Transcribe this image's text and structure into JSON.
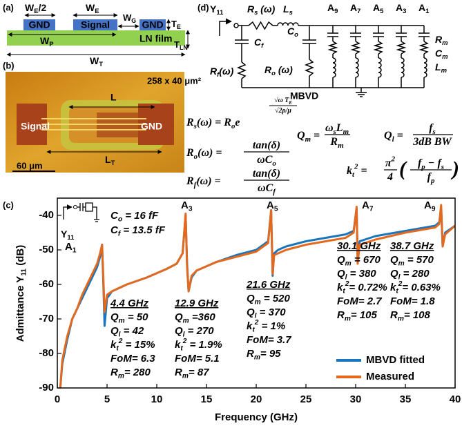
{
  "panel_a": {
    "label": "(a)",
    "we_half": [
      {
        "t": "W"
      },
      {
        "sub": "E"
      },
      {
        "t": "/2"
      }
    ],
    "we": [
      {
        "t": "W"
      },
      {
        "sub": "E"
      }
    ],
    "wg": [
      {
        "t": "W"
      },
      {
        "sub": "G"
      }
    ],
    "te": [
      {
        "t": "T"
      },
      {
        "sub": "E"
      }
    ],
    "wp": [
      {
        "t": "W"
      },
      {
        "sub": "P"
      }
    ],
    "tln": [
      {
        "t": "T"
      },
      {
        "sub": "LN"
      }
    ],
    "wt": [
      {
        "t": "W"
      },
      {
        "sub": "T"
      }
    ],
    "gnd_left": "GND",
    "signal": "Signal",
    "gnd_right": "GND",
    "film": "LN film"
  },
  "panel_b": {
    "label": "(b)",
    "size": "258 x 40 μm²",
    "length": "L",
    "total_length": [
      {
        "t": "L"
      },
      {
        "sub": "T"
      }
    ],
    "signal": "Signal",
    "gnd": "GND",
    "scale": "60 μm"
  },
  "panel_d": {
    "label": "(d)",
    "port": [
      {
        "t": "Y"
      },
      {
        "sub": "11"
      }
    ],
    "rs": [
      {
        "t": "R"
      },
      {
        "sub": "s"
      },
      {
        "t": " (ω)"
      }
    ],
    "ls": [
      {
        "t": "L"
      },
      {
        "sub": "s"
      }
    ],
    "modes": [
      [
        {
          "t": "A"
        },
        {
          "sub": "9"
        }
      ],
      [
        {
          "t": "A"
        },
        {
          "sub": "7"
        }
      ],
      [
        {
          "t": "A"
        },
        {
          "sub": "5"
        }
      ],
      [
        {
          "t": "A"
        },
        {
          "sub": "3"
        }
      ],
      [
        {
          "t": "A"
        },
        {
          "sub": "1"
        }
      ]
    ],
    "rm": [
      {
        "t": "R"
      },
      {
        "sub": "m"
      }
    ],
    "cm": [
      {
        "t": "C"
      },
      {
        "sub": "m"
      }
    ],
    "lm": [
      {
        "t": "L"
      },
      {
        "sub": "m"
      }
    ],
    "cf": [
      {
        "t": "C"
      },
      {
        "sub": "f"
      }
    ],
    "co": [
      {
        "t": "C"
      },
      {
        "sub": "o"
      }
    ],
    "ro": [
      {
        "t": "R"
      },
      {
        "sub": "o"
      },
      {
        "t": " (ω)"
      }
    ],
    "rf": [
      {
        "t": "R"
      },
      {
        "sub": "f"
      },
      {
        "t": "(ω)"
      }
    ],
    "mbvd": "MBVD"
  },
  "equations": {
    "rs": {
      "lhs": [
        {
          "t": "R"
        },
        {
          "sub": "s"
        },
        {
          "t": "(ω) = R"
        },
        {
          "sub": "o"
        },
        {
          "t": "e"
        }
      ],
      "exp_num": [
        {
          "t": "√ω T"
        },
        {
          "sub": "E"
        }
      ],
      "exp_den": [
        {
          "t": "√2ρ/μ"
        }
      ]
    },
    "qm": {
      "lhs": [
        {
          "t": "Q"
        },
        {
          "sub": "m"
        },
        {
          "t": " ="
        }
      ],
      "num": [
        {
          "t": "ω"
        },
        {
          "sub": "s"
        },
        {
          "t": "L"
        },
        {
          "sub": "m"
        }
      ],
      "den": [
        {
          "t": "R"
        },
        {
          "sub": "m"
        }
      ]
    },
    "ql": {
      "lhs": [
        {
          "t": "Q"
        },
        {
          "sub": "l"
        },
        {
          "t": " ="
        }
      ],
      "num": [
        {
          "t": "f"
        },
        {
          "sub": "s"
        }
      ],
      "den": [
        {
          "t": "3dB BW"
        }
      ]
    },
    "ro": {
      "lhs": [
        {
          "t": "R"
        },
        {
          "sub": "o"
        },
        {
          "t": "(ω) ="
        }
      ],
      "num": [
        {
          "t": "tan(δ)"
        }
      ],
      "den": [
        {
          "t": "ωC"
        },
        {
          "sub": "o"
        }
      ]
    },
    "rf": {
      "lhs": [
        {
          "t": "R"
        },
        {
          "sub": "f"
        },
        {
          "t": "(ω) ="
        }
      ],
      "num": [
        {
          "t": "tan(δ)"
        }
      ],
      "den": [
        {
          "t": "ωC"
        },
        {
          "sub": "f"
        }
      ]
    },
    "kt": {
      "lhs": [
        {
          "t": "k"
        },
        {
          "sub": "t"
        },
        {
          "sup": "2"
        },
        {
          "t": " ="
        }
      ],
      "num1": [
        {
          "t": "π"
        },
        {
          "sup": "2"
        }
      ],
      "den1": [
        {
          "t": "4"
        }
      ],
      "open": "(",
      "num2": [
        {
          "t": "f"
        },
        {
          "sub": "p"
        },
        {
          "t": " − f"
        },
        {
          "sub": "s"
        }
      ],
      "den2": [
        {
          "t": "f"
        },
        {
          "sub": "p"
        }
      ],
      "close": ")"
    }
  },
  "chart_data": {
    "type": "line",
    "panel_label": "(c)",
    "xlabel": "Frequency (GHz)",
    "ylabel": [
      {
        "t": "Admittance Y"
      },
      {
        "sub": "11"
      },
      {
        "t": " (dB)"
      }
    ],
    "x": [
      0.3,
      0.5,
      1,
      1.5,
      2,
      2.5,
      3,
      3.5,
      4,
      4.3,
      4.5,
      4.65,
      4.75,
      5,
      5.5,
      7,
      9,
      11,
      12,
      12.6,
      12.9,
      13.05,
      13.2,
      13.5,
      14,
      16,
      18,
      20,
      21.2,
      21.5,
      21.65,
      21.8,
      22.2,
      23,
      25,
      27,
      29,
      29.8,
      30.1,
      30.2,
      30.4,
      32,
      35,
      38,
      38.4,
      38.6,
      38.75,
      39,
      40
    ],
    "series": [
      {
        "name": "MBVD fitted",
        "color": "#1a75bc",
        "values": [
          -90,
          -83,
          -76,
          -70,
          -67,
          -64,
          -61,
          -58,
          -55,
          -52,
          -48.5,
          -62,
          -72,
          -64,
          -62,
          -60,
          -58,
          -55.5,
          -54,
          -51,
          -40,
          -54,
          -62,
          -58,
          -56,
          -53.5,
          -51.5,
          -50,
          -47.5,
          -38.5,
          -57.5,
          -51,
          -50,
          -49,
          -47.5,
          -46.5,
          -45.5,
          -44.5,
          -38,
          -53,
          -47.5,
          -46,
          -44.5,
          -43,
          -42,
          -38,
          -49,
          -45,
          -43
        ]
      },
      {
        "name": "Measured",
        "color": "#e2691e",
        "values": [
          -90,
          -82,
          -75,
          -70,
          -67,
          -63,
          -60,
          -57,
          -54,
          -51,
          -48.5,
          -60,
          -68,
          -63,
          -62,
          -60,
          -58,
          -55.5,
          -54,
          -51,
          -39.5,
          -55,
          -62,
          -57.5,
          -56,
          -53.5,
          -52,
          -50.5,
          -48,
          -38.5,
          -57,
          -51.5,
          -51,
          -50,
          -48.5,
          -47.5,
          -46.5,
          -45,
          -37.5,
          -54,
          -48.5,
          -47,
          -45,
          -43.5,
          -42.5,
          -37,
          -49,
          -45.5,
          -43
        ]
      }
    ],
    "xlim": [
      0,
      40
    ],
    "ylim": [
      -90,
      -35
    ],
    "xticks": [
      0,
      5,
      10,
      15,
      20,
      25,
      30,
      35,
      40
    ],
    "yticks": [
      -90,
      -80,
      -70,
      -60,
      -50,
      -40
    ],
    "legend": "lower right",
    "mode_labels": [
      [
        {
          "t": "A"
        },
        {
          "sub": "1"
        }
      ],
      [
        {
          "t": "A"
        },
        {
          "sub": "3"
        }
      ],
      [
        {
          "t": "A"
        },
        {
          "sub": "5"
        }
      ],
      [
        {
          "t": "A"
        },
        {
          "sub": "7"
        }
      ],
      [
        {
          "t": "A"
        },
        {
          "sub": "9"
        }
      ]
    ],
    "inset": {
      "port": [
        {
          "t": "Y"
        },
        {
          "sub": "11"
        }
      ],
      "co": [
        {
          "t": "C"
        },
        {
          "sub": "o"
        },
        {
          "t": " = 16 fF"
        }
      ],
      "cf": [
        {
          "t": "C"
        },
        {
          "sub": "f"
        },
        {
          "t": " = 13.5 fF"
        }
      ]
    },
    "annotations": [
      {
        "title": "4.4 GHz",
        "lines": [
          [
            {
              "t": "Q"
            },
            {
              "sub": "m"
            },
            {
              "t": " = 50"
            }
          ],
          [
            {
              "t": "Q"
            },
            {
              "sub": "l"
            },
            {
              "t": " = 42"
            }
          ],
          [
            {
              "t": "k"
            },
            {
              "sub": "t"
            },
            {
              "sup": "2"
            },
            {
              "t": " = 15%"
            }
          ],
          [
            {
              "t": "FoM= 6.3"
            }
          ],
          [
            {
              "t": "R"
            },
            {
              "sub": "m"
            },
            {
              "t": "= 280"
            }
          ]
        ]
      },
      {
        "title": "12.9 GHz",
        "lines": [
          [
            {
              "t": "Q"
            },
            {
              "sub": "m"
            },
            {
              "t": " =360"
            }
          ],
          [
            {
              "t": "Q"
            },
            {
              "sub": "l"
            },
            {
              "t": " = 270"
            }
          ],
          [
            {
              "t": "k"
            },
            {
              "sub": "t"
            },
            {
              "sup": "2"
            },
            {
              "t": " = 1.9%"
            }
          ],
          [
            {
              "t": "FoM= 5.1"
            }
          ],
          [
            {
              "t": "R"
            },
            {
              "sub": "m"
            },
            {
              "t": "= 87"
            }
          ]
        ]
      },
      {
        "title": "21.6 GHz",
        "lines": [
          [
            {
              "t": "Q"
            },
            {
              "sub": "m"
            },
            {
              "t": " = 520"
            }
          ],
          [
            {
              "t": "Q"
            },
            {
              "sub": "l"
            },
            {
              "t": " = 370"
            }
          ],
          [
            {
              "t": "k"
            },
            {
              "sub": "t"
            },
            {
              "sup": "2"
            },
            {
              "t": " = 1%"
            }
          ],
          [
            {
              "t": "FoM= 3.7"
            }
          ],
          [
            {
              "t": "R"
            },
            {
              "sub": "m"
            },
            {
              "t": "= 95"
            }
          ]
        ]
      },
      {
        "title": "30.1 GHz",
        "lines": [
          [
            {
              "t": "Q"
            },
            {
              "sub": "m"
            },
            {
              "t": " = 670"
            }
          ],
          [
            {
              "t": "Q"
            },
            {
              "sub": "l"
            },
            {
              "t": " = 380"
            }
          ],
          [
            {
              "t": "k"
            },
            {
              "sub": "t"
            },
            {
              "sup": "2"
            },
            {
              "t": "= 0.72%"
            }
          ],
          [
            {
              "t": "FoM= 2.7"
            }
          ],
          [
            {
              "t": "R"
            },
            {
              "sub": "m"
            },
            {
              "t": "= 105"
            }
          ]
        ]
      },
      {
        "title": "38.7 GHz",
        "lines": [
          [
            {
              "t": "Q"
            },
            {
              "sub": "m"
            },
            {
              "t": " = 570"
            }
          ],
          [
            {
              "t": "Q"
            },
            {
              "sub": "l"
            },
            {
              "t": " = 280"
            }
          ],
          [
            {
              "t": "k"
            },
            {
              "sub": "t"
            },
            {
              "sup": "2"
            },
            {
              "t": "= 0.63%"
            }
          ],
          [
            {
              "t": "FoM= 1.8"
            }
          ],
          [
            {
              "t": "R"
            },
            {
              "sub": "m"
            },
            {
              "t": "= 108"
            }
          ]
        ]
      }
    ]
  }
}
